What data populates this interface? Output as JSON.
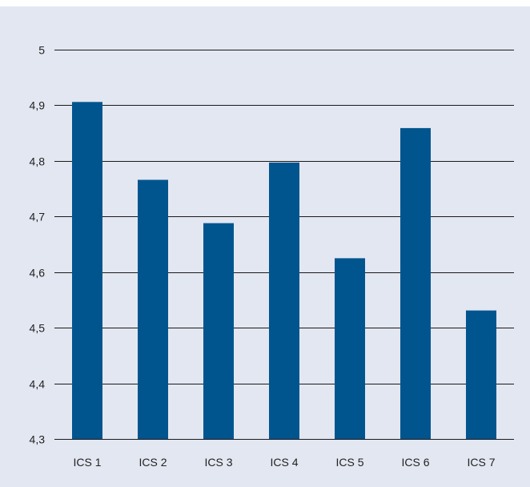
{
  "colors": {
    "panel_background": "#e3e7f1",
    "bar": "#00558f",
    "gridline": "#1a1a1a"
  },
  "chart_data": {
    "type": "bar",
    "categories": [
      "ICS 1",
      "ICS 2",
      "ICS 3",
      "ICS 4",
      "ICS 5",
      "ICS 6",
      "ICS 7"
    ],
    "values": [
      4.906,
      4.766,
      4.688,
      4.797,
      4.625,
      4.859,
      4.531
    ],
    "title": "",
    "xlabel": "",
    "ylabel": "",
    "ylim": [
      4.3,
      5.0
    ],
    "yticks": [
      "4,3",
      "4,4",
      "4,5",
      "4,6",
      "4,7",
      "4,8",
      "4,9",
      "5"
    ],
    "ytick_values": [
      4.3,
      4.4,
      4.5,
      4.6,
      4.7,
      4.8,
      4.9,
      5.0
    ],
    "grid": true,
    "legend": "none"
  }
}
